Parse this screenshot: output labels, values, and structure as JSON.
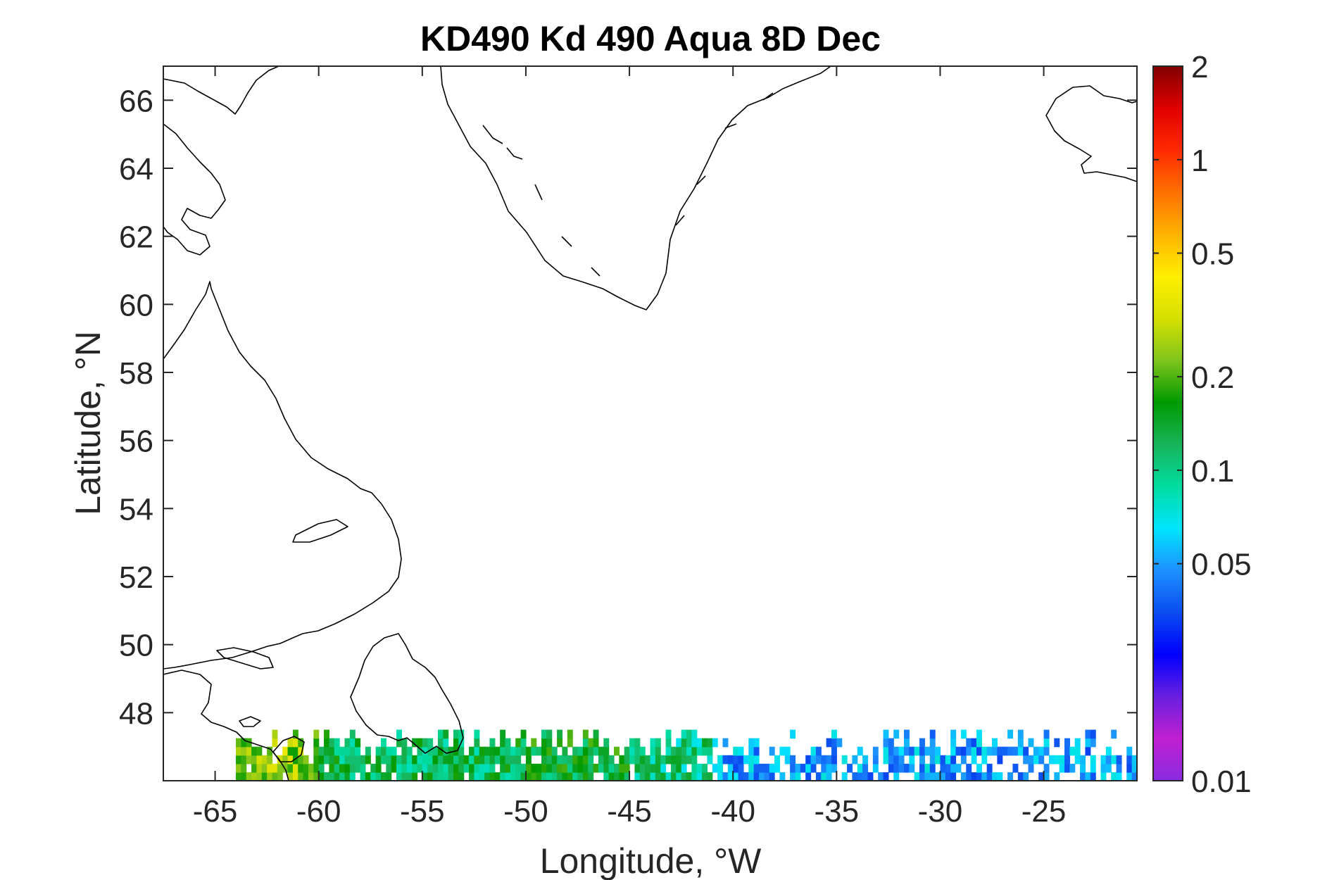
{
  "title": "KD490 Kd 490 Aqua 8D Dec",
  "x_axis": {
    "label": "Longitude, °W",
    "range": [
      -67.5,
      -20.5
    ],
    "ticks": [
      -65,
      -60,
      -55,
      -50,
      -45,
      -40,
      -35,
      -30,
      -25
    ],
    "tick_labels": [
      "-65",
      "-60",
      "-55",
      "-50",
      "-45",
      "-40",
      "-35",
      "-30",
      "-25"
    ]
  },
  "y_axis": {
    "label": "Latitude, °N",
    "range": [
      46,
      67
    ],
    "ticks": [
      48,
      50,
      52,
      54,
      56,
      58,
      60,
      62,
      64,
      66
    ],
    "tick_labels": [
      "48",
      "50",
      "52",
      "54",
      "56",
      "58",
      "60",
      "62",
      "64",
      "66"
    ]
  },
  "colorbar": {
    "scale": "log",
    "range": [
      0.01,
      2
    ],
    "ticks": [
      0.01,
      0.05,
      0.1,
      0.2,
      0.5,
      1,
      2
    ],
    "tick_labels": [
      "0.01",
      "0.05",
      "0.1",
      "0.2",
      "0.5",
      "1",
      "2"
    ],
    "colormap": [
      "#8a2be2",
      "#c020d0",
      "#6a1fe0",
      "#0000ff",
      "#0a4cf0",
      "#1e90ff",
      "#00e5ff",
      "#00dca0",
      "#18b45a",
      "#009a00",
      "#7fc41c",
      "#d6e000",
      "#ffee00",
      "#ffb300",
      "#ff7000",
      "#ff2a00",
      "#e00000",
      "#800000"
    ]
  },
  "data_band": {
    "lat_range": [
      46,
      47.5
    ],
    "lon_range": [
      -67.5,
      -20.5
    ],
    "regions": [
      {
        "lon": [
          -64,
          -60
        ],
        "kd": 0.25
      },
      {
        "lon": [
          -60,
          -50.5
        ],
        "kd": 0.12
      },
      {
        "lon": [
          -50.5,
          -45
        ],
        "kd": 0.14
      },
      {
        "lon": [
          -45,
          -41
        ],
        "kd": 0.1
      },
      {
        "lon": [
          -41,
          -20.5
        ],
        "kd": 0.05
      }
    ]
  }
}
